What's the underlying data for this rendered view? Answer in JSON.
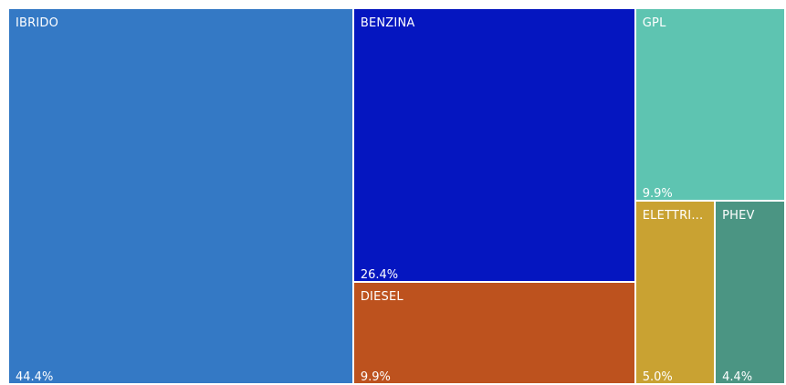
{
  "chart_data": {
    "type": "treemap",
    "title": "",
    "items": [
      {
        "label": "IBRIDO",
        "value_label": "44.4%",
        "value": 44.4,
        "color": "#3479c5"
      },
      {
        "label": "BENZINA",
        "value_label": "26.4%",
        "value": 26.4,
        "color": "#0516c0"
      },
      {
        "label": "DIESEL",
        "value_label": "9.9%",
        "value": 9.9,
        "color": "#bd521e"
      },
      {
        "label": "GPL",
        "value_label": "9.9%",
        "value": 9.9,
        "color": "#5ec4b1"
      },
      {
        "label": "ELETTRI...",
        "value_label": "5.0%",
        "value": 5.0,
        "color": "#c9a232"
      },
      {
        "label": "PHEV",
        "value_label": "4.4%",
        "value": 4.4,
        "color": "#4b9583"
      }
    ]
  }
}
